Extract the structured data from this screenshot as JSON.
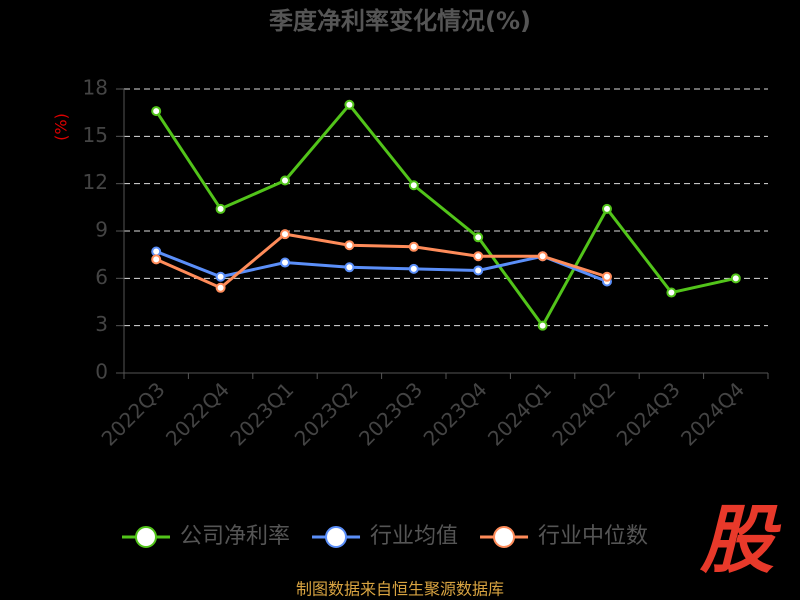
{
  "chart_data": {
    "type": "line",
    "title": "季度净利率变化情况(%)",
    "y_label": "(%)",
    "categories": [
      "2022Q3",
      "2022Q4",
      "2023Q1",
      "2023Q2",
      "2023Q3",
      "2023Q4",
      "2024Q1",
      "2024Q2",
      "2024Q3",
      "2024Q4"
    ],
    "series": [
      {
        "name": "公司净利率",
        "color": "#52c41a",
        "values": [
          16.6,
          10.4,
          12.2,
          17.0,
          11.9,
          8.6,
          3.0,
          10.4,
          5.1,
          6.0
        ]
      },
      {
        "name": "行业均值",
        "color": "#5b8ff9",
        "values": [
          7.7,
          6.1,
          7.0,
          6.7,
          6.6,
          6.5,
          7.4,
          5.8,
          null,
          null
        ]
      },
      {
        "name": "行业中位数",
        "color": "#ff8c5a",
        "values": [
          7.2,
          5.4,
          8.8,
          8.1,
          8.0,
          7.4,
          7.4,
          6.1,
          null,
          null
        ]
      }
    ],
    "ylim": [
      0,
      18
    ],
    "yticks": [
      0,
      3,
      6,
      9,
      12,
      15,
      18
    ],
    "grid": true,
    "source": "制图数据来自恒生聚源数据库",
    "logo": "股"
  }
}
